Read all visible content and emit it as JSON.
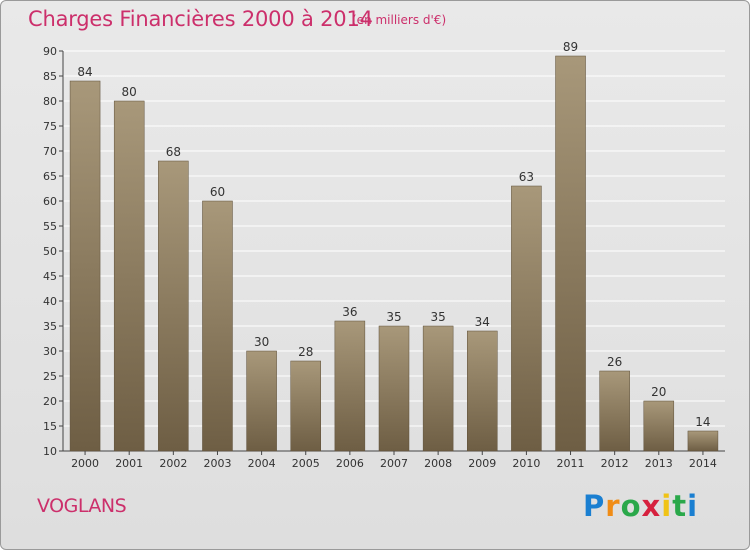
{
  "header": {
    "title": "Charges Financières 2000 à 2014",
    "subtitle": "(en milliers d'€)"
  },
  "footer": {
    "place": "VOGLANS",
    "logo": [
      "P",
      "r",
      "o",
      "x",
      "i",
      "t",
      "i"
    ],
    "logo_colors": [
      "#1a7fd1",
      "#f08c16",
      "#2aa84a",
      "#d6213e",
      "#f0c316",
      "#2aa84a",
      "#1a7fd1"
    ]
  },
  "colors": {
    "accent": "#cc2f6b",
    "bar_top": "#a8987a",
    "bar_bottom": "#6e5e44",
    "grid": "#ffffff"
  },
  "chart_data": {
    "type": "bar",
    "title": "Charges Financières 2000 à 2014",
    "subtitle": "(en milliers d'€)",
    "categories": [
      "2000",
      "2001",
      "2002",
      "2003",
      "2004",
      "2005",
      "2006",
      "2007",
      "2008",
      "2009",
      "2010",
      "2011",
      "2012",
      "2013",
      "2014"
    ],
    "values": [
      84,
      80,
      68,
      60,
      30,
      28,
      36,
      35,
      35,
      34,
      63,
      89,
      26,
      20,
      14
    ],
    "ylim": [
      10,
      90
    ],
    "yticks": [
      10,
      15,
      20,
      25,
      30,
      35,
      40,
      45,
      50,
      55,
      60,
      65,
      70,
      75,
      80,
      85,
      90
    ],
    "grid": true,
    "legend": "none"
  }
}
